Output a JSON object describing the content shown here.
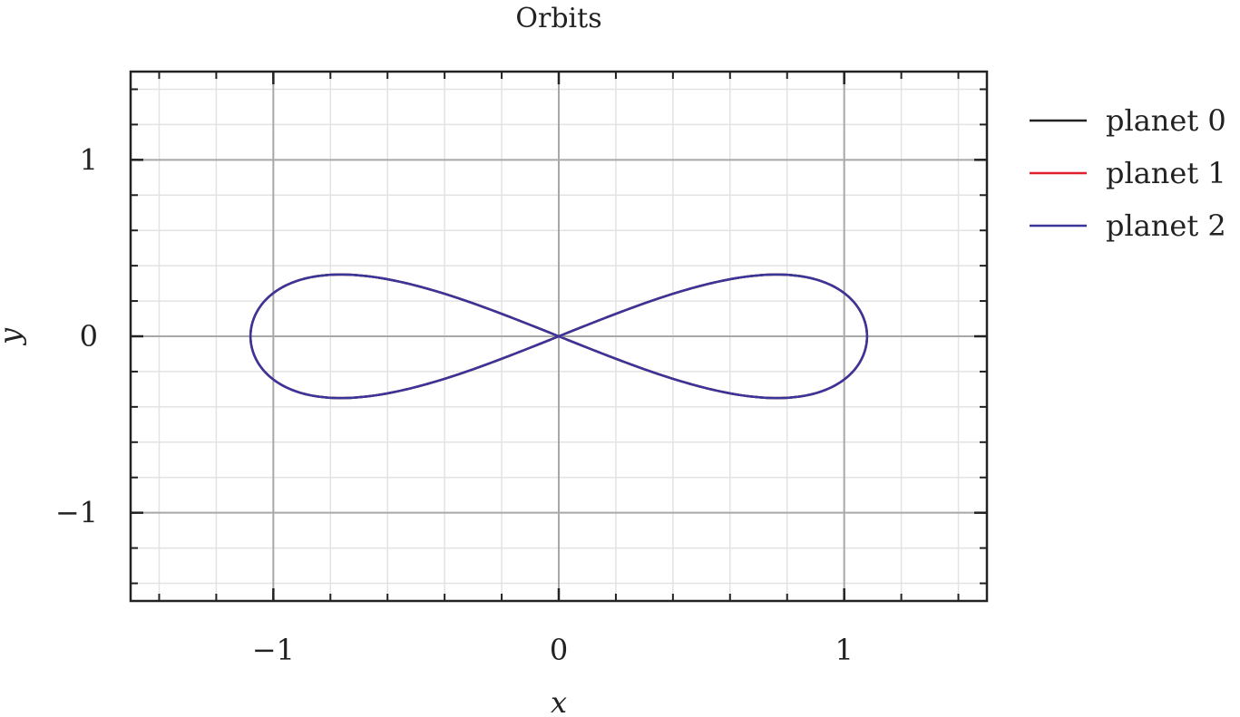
{
  "chart_data": {
    "type": "line",
    "title": "Orbits",
    "xlabel": "x",
    "ylabel": "y",
    "xlim": [
      -1.5,
      1.5
    ],
    "ylim": [
      -1.5,
      1.5
    ],
    "grid": true,
    "minor_grid": true,
    "legend_position": "outside-right",
    "x_ticks": [
      -1,
      0,
      1
    ],
    "y_ticks": [
      -1,
      0,
      1
    ],
    "x_tick_labels": [
      "−1",
      "0",
      "1"
    ],
    "y_tick_labels": [
      "−1",
      "0",
      "1"
    ],
    "curve": {
      "shape": "figure-eight",
      "x_extent": [
        -1.08,
        1.08
      ],
      "y_extent": [
        -0.35,
        0.35
      ],
      "lobe_peak_x": [
        -0.66,
        0.66
      ],
      "crossing": [
        0,
        0
      ]
    },
    "series": [
      {
        "name": "planet 0",
        "color": "#222222"
      },
      {
        "name": "planet 1",
        "color": "#e0202e"
      },
      {
        "name": "planet 2",
        "color": "#38369a"
      }
    ]
  }
}
